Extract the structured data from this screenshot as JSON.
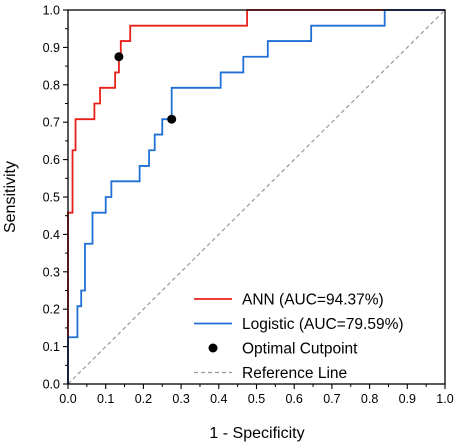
{
  "chart_data": {
    "type": "line",
    "xlabel": "1 - Specificity",
    "ylabel": "Sensitivity",
    "xlim": [
      0,
      1
    ],
    "ylim": [
      0,
      1
    ],
    "x_ticks": [
      "0.0",
      "0.1",
      "0.2",
      "0.3",
      "0.4",
      "0.5",
      "0.6",
      "0.7",
      "0.8",
      "0.9",
      "1.0"
    ],
    "y_ticks": [
      "0.0",
      "0.1",
      "0.2",
      "0.3",
      "0.4",
      "0.5",
      "0.6",
      "0.7",
      "0.8",
      "0.9",
      "1.0"
    ],
    "grid": false,
    "legend_position": "bottom-right",
    "series": [
      {
        "name": "ANN (AUC=94.37%)",
        "color": "#e8201a",
        "style": "solid",
        "points": [
          [
            0.0,
            0.0
          ],
          [
            0.0,
            0.458
          ],
          [
            0.012,
            0.458
          ],
          [
            0.012,
            0.625
          ],
          [
            0.02,
            0.625
          ],
          [
            0.02,
            0.708
          ],
          [
            0.07,
            0.708
          ],
          [
            0.07,
            0.75
          ],
          [
            0.085,
            0.75
          ],
          [
            0.085,
            0.792
          ],
          [
            0.125,
            0.792
          ],
          [
            0.125,
            0.833
          ],
          [
            0.135,
            0.833
          ],
          [
            0.135,
            0.875
          ],
          [
            0.14,
            0.875
          ],
          [
            0.14,
            0.917
          ],
          [
            0.165,
            0.917
          ],
          [
            0.165,
            0.958
          ],
          [
            0.475,
            0.958
          ],
          [
            0.475,
            1.0
          ],
          [
            1.0,
            1.0
          ]
        ]
      },
      {
        "name": "Logistic (AUC=79.59%)",
        "color": "#1f6fd6",
        "style": "solid",
        "points": [
          [
            0.0,
            0.0
          ],
          [
            0.0,
            0.125
          ],
          [
            0.025,
            0.125
          ],
          [
            0.025,
            0.208
          ],
          [
            0.035,
            0.208
          ],
          [
            0.035,
            0.25
          ],
          [
            0.045,
            0.25
          ],
          [
            0.045,
            0.375
          ],
          [
            0.065,
            0.375
          ],
          [
            0.065,
            0.458
          ],
          [
            0.1,
            0.458
          ],
          [
            0.1,
            0.5
          ],
          [
            0.115,
            0.5
          ],
          [
            0.115,
            0.542
          ],
          [
            0.19,
            0.542
          ],
          [
            0.19,
            0.583
          ],
          [
            0.215,
            0.583
          ],
          [
            0.215,
            0.625
          ],
          [
            0.23,
            0.625
          ],
          [
            0.23,
            0.667
          ],
          [
            0.25,
            0.667
          ],
          [
            0.25,
            0.708
          ],
          [
            0.275,
            0.708
          ],
          [
            0.275,
            0.792
          ],
          [
            0.405,
            0.792
          ],
          [
            0.405,
            0.833
          ],
          [
            0.465,
            0.833
          ],
          [
            0.465,
            0.875
          ],
          [
            0.53,
            0.875
          ],
          [
            0.53,
            0.917
          ],
          [
            0.645,
            0.917
          ],
          [
            0.645,
            0.958
          ],
          [
            0.84,
            0.958
          ],
          [
            0.84,
            1.0
          ],
          [
            1.0,
            1.0
          ]
        ]
      },
      {
        "name": "Reference Line",
        "color": "#999999",
        "style": "dashed",
        "points": [
          [
            0,
            0
          ],
          [
            1,
            1
          ]
        ]
      }
    ],
    "markers": {
      "name": "Optimal Cutpoint",
      "color": "#000000",
      "points": [
        [
          0.135,
          0.875
        ],
        [
          0.275,
          0.708
        ]
      ]
    }
  }
}
